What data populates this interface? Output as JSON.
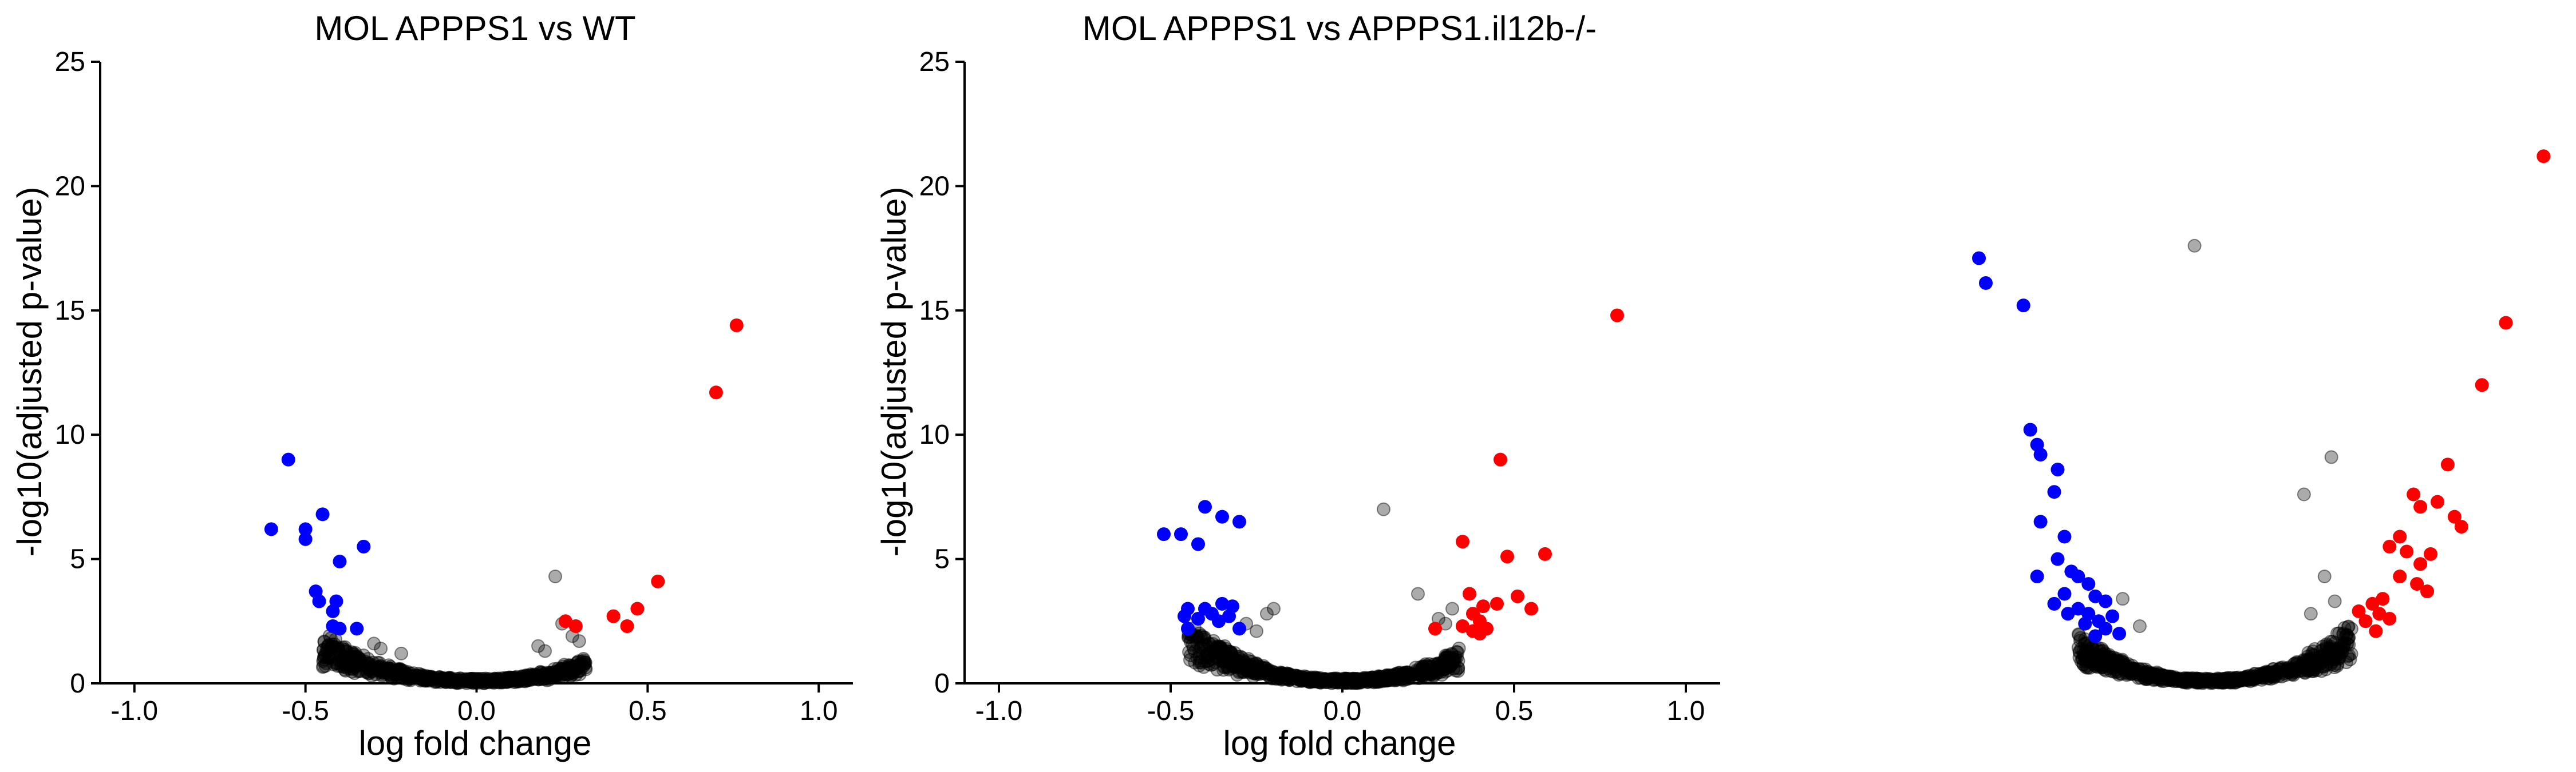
{
  "panels": [
    {
      "title": "MOL APPPS1 vs WT",
      "xlabel": "log fold change",
      "ylabel": "-log10(adjusted p-value)",
      "show_axes": true
    },
    {
      "title": "MOL APPPS1 vs APPPS1.il12b-/-",
      "xlabel": "log fold change",
      "ylabel": "-log10(adjusted p-value)",
      "show_axes": true
    },
    {
      "title": "",
      "xlabel": "",
      "ylabel": "",
      "show_axes": false
    }
  ],
  "chart_data": [
    {
      "type": "scatter",
      "title": "MOL APPPS1 vs WT",
      "xlabel": "log fold change",
      "ylabel": "-log10(adjusted p-value)",
      "xlim": [
        -1.1,
        1.1
      ],
      "ylim": [
        0,
        25
      ],
      "xticks": [
        "-1.0",
        "-0.5",
        "0.0",
        "0.5",
        "1.0"
      ],
      "yticks": [
        "0",
        "5",
        "10",
        "15",
        "20",
        "25"
      ],
      "colors": {
        "down": "#0000ff",
        "up": "#ff0000",
        "ns": "#000000"
      },
      "down": [
        [
          -0.6,
          6.2
        ],
        [
          -0.55,
          9.0
        ],
        [
          -0.5,
          6.2
        ],
        [
          -0.5,
          5.8
        ],
        [
          -0.45,
          6.8
        ],
        [
          -0.4,
          4.9
        ],
        [
          -0.33,
          5.5
        ],
        [
          -0.47,
          3.7
        ],
        [
          -0.46,
          3.3
        ],
        [
          -0.41,
          3.3
        ],
        [
          -0.42,
          2.9
        ],
        [
          -0.42,
          2.3
        ],
        [
          -0.4,
          2.2
        ],
        [
          -0.35,
          2.2
        ]
      ],
      "up": [
        [
          0.76,
          14.4
        ],
        [
          0.7,
          11.7
        ],
        [
          0.53,
          4.1
        ],
        [
          0.47,
          3.0
        ],
        [
          0.4,
          2.7
        ],
        [
          0.44,
          2.3
        ],
        [
          0.26,
          2.5
        ],
        [
          0.29,
          2.3
        ]
      ],
      "ns_cloud": {
        "xmin": -0.45,
        "xmax": 0.32,
        "peak": 1.8
      },
      "ns_extra": [
        [
          0.23,
          4.3
        ],
        [
          0.25,
          2.4
        ],
        [
          0.2,
          1.3
        ],
        [
          0.18,
          1.5
        ],
        [
          -0.3,
          1.6
        ],
        [
          -0.28,
          1.4
        ],
        [
          -0.22,
          1.2
        ],
        [
          0.3,
          1.7
        ],
        [
          0.28,
          1.9
        ]
      ]
    },
    {
      "type": "scatter",
      "title": "MOL APPPS1 vs APPPS1.il12b-/-",
      "xlabel": "log fold change",
      "ylabel": "-log10(adjusted p-value)",
      "xlim": [
        -1.1,
        1.1
      ],
      "ylim": [
        0,
        25
      ],
      "xticks": [
        "-1.0",
        "-0.5",
        "0.0",
        "0.5",
        "1.0"
      ],
      "yticks": [
        "0",
        "5",
        "10",
        "15",
        "20",
        "25"
      ],
      "colors": {
        "down": "#0000ff",
        "up": "#ff0000",
        "ns": "#000000"
      },
      "down": [
        [
          -0.52,
          6.0
        ],
        [
          -0.47,
          6.0
        ],
        [
          -0.4,
          7.1
        ],
        [
          -0.35,
          6.7
        ],
        [
          -0.3,
          6.5
        ],
        [
          -0.42,
          5.6
        ],
        [
          -0.45,
          3.0
        ],
        [
          -0.46,
          2.7
        ],
        [
          -0.45,
          2.2
        ],
        [
          -0.42,
          2.6
        ],
        [
          -0.38,
          2.8
        ],
        [
          -0.35,
          3.2
        ],
        [
          -0.32,
          3.1
        ],
        [
          -0.33,
          2.7
        ],
        [
          -0.3,
          2.2
        ],
        [
          -0.36,
          2.5
        ],
        [
          -0.4,
          3.0
        ]
      ],
      "up": [
        [
          0.8,
          14.8
        ],
        [
          0.46,
          9.0
        ],
        [
          0.35,
          5.7
        ],
        [
          0.48,
          5.1
        ],
        [
          0.59,
          5.2
        ],
        [
          0.37,
          3.6
        ],
        [
          0.45,
          3.2
        ],
        [
          0.51,
          3.5
        ],
        [
          0.55,
          3.0
        ],
        [
          0.41,
          3.1
        ],
        [
          0.38,
          2.8
        ],
        [
          0.4,
          2.5
        ],
        [
          0.35,
          2.3
        ],
        [
          0.38,
          2.1
        ],
        [
          0.42,
          2.2
        ],
        [
          0.4,
          2.0
        ],
        [
          0.27,
          2.2
        ]
      ],
      "ns_cloud": {
        "xmin": -0.45,
        "xmax": 0.34,
        "peak": 2.2
      },
      "ns_extra": [
        [
          0.12,
          7.0
        ],
        [
          0.22,
          3.6
        ],
        [
          -0.2,
          3.0
        ],
        [
          -0.22,
          2.8
        ],
        [
          -0.28,
          2.4
        ],
        [
          -0.25,
          2.1
        ],
        [
          0.3,
          2.4
        ],
        [
          0.28,
          2.6
        ],
        [
          0.32,
          3.0
        ]
      ]
    },
    {
      "type": "scatter",
      "title": "",
      "xlabel": "",
      "ylabel": "",
      "xlim": [
        -1.1,
        1.1
      ],
      "ylim": [
        0,
        25
      ],
      "xticks": [],
      "yticks": [],
      "axes_visible": false,
      "colors": {
        "down": "#0000ff",
        "up": "#ff0000",
        "ns": "#000000"
      },
      "down": [
        [
          -0.67,
          17.1
        ],
        [
          -0.65,
          16.1
        ],
        [
          -0.54,
          15.2
        ],
        [
          -0.52,
          10.2
        ],
        [
          -0.5,
          9.6
        ],
        [
          -0.49,
          9.2
        ],
        [
          -0.44,
          8.6
        ],
        [
          -0.45,
          7.7
        ],
        [
          -0.49,
          6.5
        ],
        [
          -0.42,
          5.9
        ],
        [
          -0.5,
          4.3
        ],
        [
          -0.44,
          5.0
        ],
        [
          -0.4,
          4.5
        ],
        [
          -0.38,
          4.3
        ],
        [
          -0.35,
          4.0
        ],
        [
          -0.33,
          3.5
        ],
        [
          -0.3,
          3.3
        ],
        [
          -0.42,
          3.6
        ],
        [
          -0.45,
          3.2
        ],
        [
          -0.38,
          3.0
        ],
        [
          -0.35,
          2.8
        ],
        [
          -0.32,
          2.5
        ],
        [
          -0.28,
          2.7
        ],
        [
          -0.3,
          2.2
        ],
        [
          -0.36,
          2.4
        ],
        [
          -0.41,
          2.8
        ],
        [
          -0.26,
          2.0
        ],
        [
          -0.33,
          1.9
        ]
      ],
      "up": [
        [
          0.98,
          21.2
        ],
        [
          0.87,
          14.5
        ],
        [
          0.8,
          12.0
        ],
        [
          0.7,
          8.8
        ],
        [
          0.6,
          7.6
        ],
        [
          0.62,
          7.1
        ],
        [
          0.67,
          7.3
        ],
        [
          0.72,
          6.7
        ],
        [
          0.74,
          6.3
        ],
        [
          0.56,
          5.9
        ],
        [
          0.53,
          5.5
        ],
        [
          0.58,
          5.3
        ],
        [
          0.65,
          5.2
        ],
        [
          0.62,
          4.8
        ],
        [
          0.56,
          4.3
        ],
        [
          0.61,
          4.0
        ],
        [
          0.64,
          3.7
        ],
        [
          0.51,
          3.4
        ],
        [
          0.48,
          3.2
        ],
        [
          0.5,
          2.8
        ],
        [
          0.53,
          2.6
        ],
        [
          0.46,
          2.5
        ],
        [
          0.44,
          2.9
        ],
        [
          0.49,
          2.1
        ]
      ],
      "ns_cloud": {
        "xmin": -0.38,
        "xmax": 0.42,
        "peak": 2.2
      },
      "ns_extra": [
        [
          -0.04,
          17.6
        ],
        [
          0.36,
          9.1
        ],
        [
          0.28,
          7.6
        ],
        [
          0.34,
          4.3
        ],
        [
          0.37,
          3.3
        ],
        [
          0.3,
          2.8
        ],
        [
          -0.25,
          3.4
        ],
        [
          -0.2,
          2.3
        ]
      ]
    }
  ]
}
